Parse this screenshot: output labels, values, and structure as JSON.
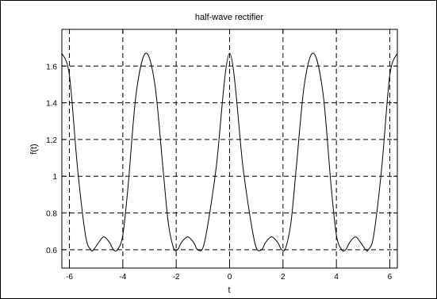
{
  "chart_data": {
    "type": "line",
    "title": "half-wave rectifier",
    "xlabel": "t",
    "ylabel": "f(t)",
    "xlim": [
      -6.2832,
      6.2832
    ],
    "ylim": [
      0.5,
      1.8
    ],
    "grid": true,
    "grid_style": "dashed",
    "line_color": "#000000",
    "xticks": [
      -6,
      -4,
      -2,
      0,
      2,
      4,
      6
    ],
    "xtick_labels": [
      "-6",
      "-4",
      "-2",
      "0",
      "2",
      "4",
      "6"
    ],
    "yticks": [
      0.6,
      0.8,
      1.0,
      1.2,
      1.4,
      1.6
    ],
    "ytick_labels": [
      "0.6",
      "0.8",
      "1",
      "1.2",
      "1.4",
      "1.6"
    ],
    "series": [
      {
        "values_note": "",
        "x": [
          -6.2832,
          -6.0,
          -5.7,
          -5.4,
          -5.2,
          -5.1,
          -4.9,
          -4.712,
          -4.5,
          -4.35,
          -4.2,
          -4.0,
          -3.8,
          -3.5,
          -3.1416,
          -2.8,
          -2.5,
          -2.3,
          -2.1,
          -1.95,
          -1.8,
          -1.571,
          -1.35,
          -1.2,
          -1.0,
          -0.8,
          -0.5,
          0.0,
          0.5,
          0.8,
          1.0,
          1.2,
          1.35,
          1.571,
          1.8,
          1.95,
          2.1,
          2.3,
          2.5,
          2.8,
          3.1416,
          3.5,
          3.8,
          4.0,
          4.2,
          4.35,
          4.5,
          4.712,
          4.9,
          5.1,
          5.2,
          5.4,
          5.7,
          6.0,
          6.2832
        ],
        "y": [
          1.67,
          1.55,
          1.05,
          0.68,
          0.6,
          0.6,
          0.64,
          0.67,
          0.64,
          0.6,
          0.6,
          0.68,
          0.95,
          1.45,
          1.67,
          1.5,
          1.05,
          0.75,
          0.61,
          0.6,
          0.64,
          0.67,
          0.64,
          0.6,
          0.61,
          0.75,
          1.05,
          1.67,
          1.05,
          0.75,
          0.61,
          0.6,
          0.64,
          0.67,
          0.64,
          0.6,
          0.61,
          0.75,
          1.05,
          1.5,
          1.67,
          1.45,
          0.95,
          0.68,
          0.6,
          0.6,
          0.64,
          0.67,
          0.64,
          0.6,
          0.6,
          0.68,
          1.05,
          1.55,
          1.67
        ]
      }
    ]
  }
}
